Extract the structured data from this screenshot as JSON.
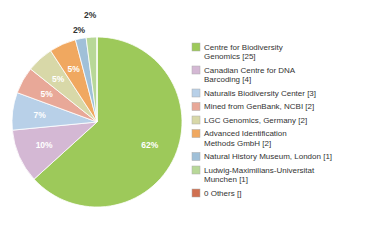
{
  "chart_data": {
    "type": "pie",
    "categories": [
      "Centre for Biodiversity\nGenomics [25]",
      "Canadian Centre for DNA\nBarcoding [4]",
      "Naturalis Biodiversity Center [3]",
      "Mined from GenBank, NCBI [2]",
      "LGC Genomics, Germany [2]",
      "Advanced Identification\nMethods GmbH [2]",
      "Natural History Museum, London [1]",
      "Ludwig-Maximilians-Universitat\nMunchen [1]",
      "0 Others []"
    ],
    "values": [
      62,
      10,
      7,
      5,
      5,
      5,
      2,
      2,
      0
    ],
    "value_labels": [
      "62%",
      "10%",
      "7%",
      "5%",
      "5%",
      "5%",
      "2%",
      "2%",
      null
    ],
    "colors": [
      "#9dc95a",
      "#d4b8d4",
      "#b8d0e8",
      "#e8a898",
      "#d8d8a8",
      "#f0a860",
      "#a0c0d8",
      "#b8d898",
      "#d07050"
    ],
    "data_labels": true,
    "legend": "right"
  }
}
